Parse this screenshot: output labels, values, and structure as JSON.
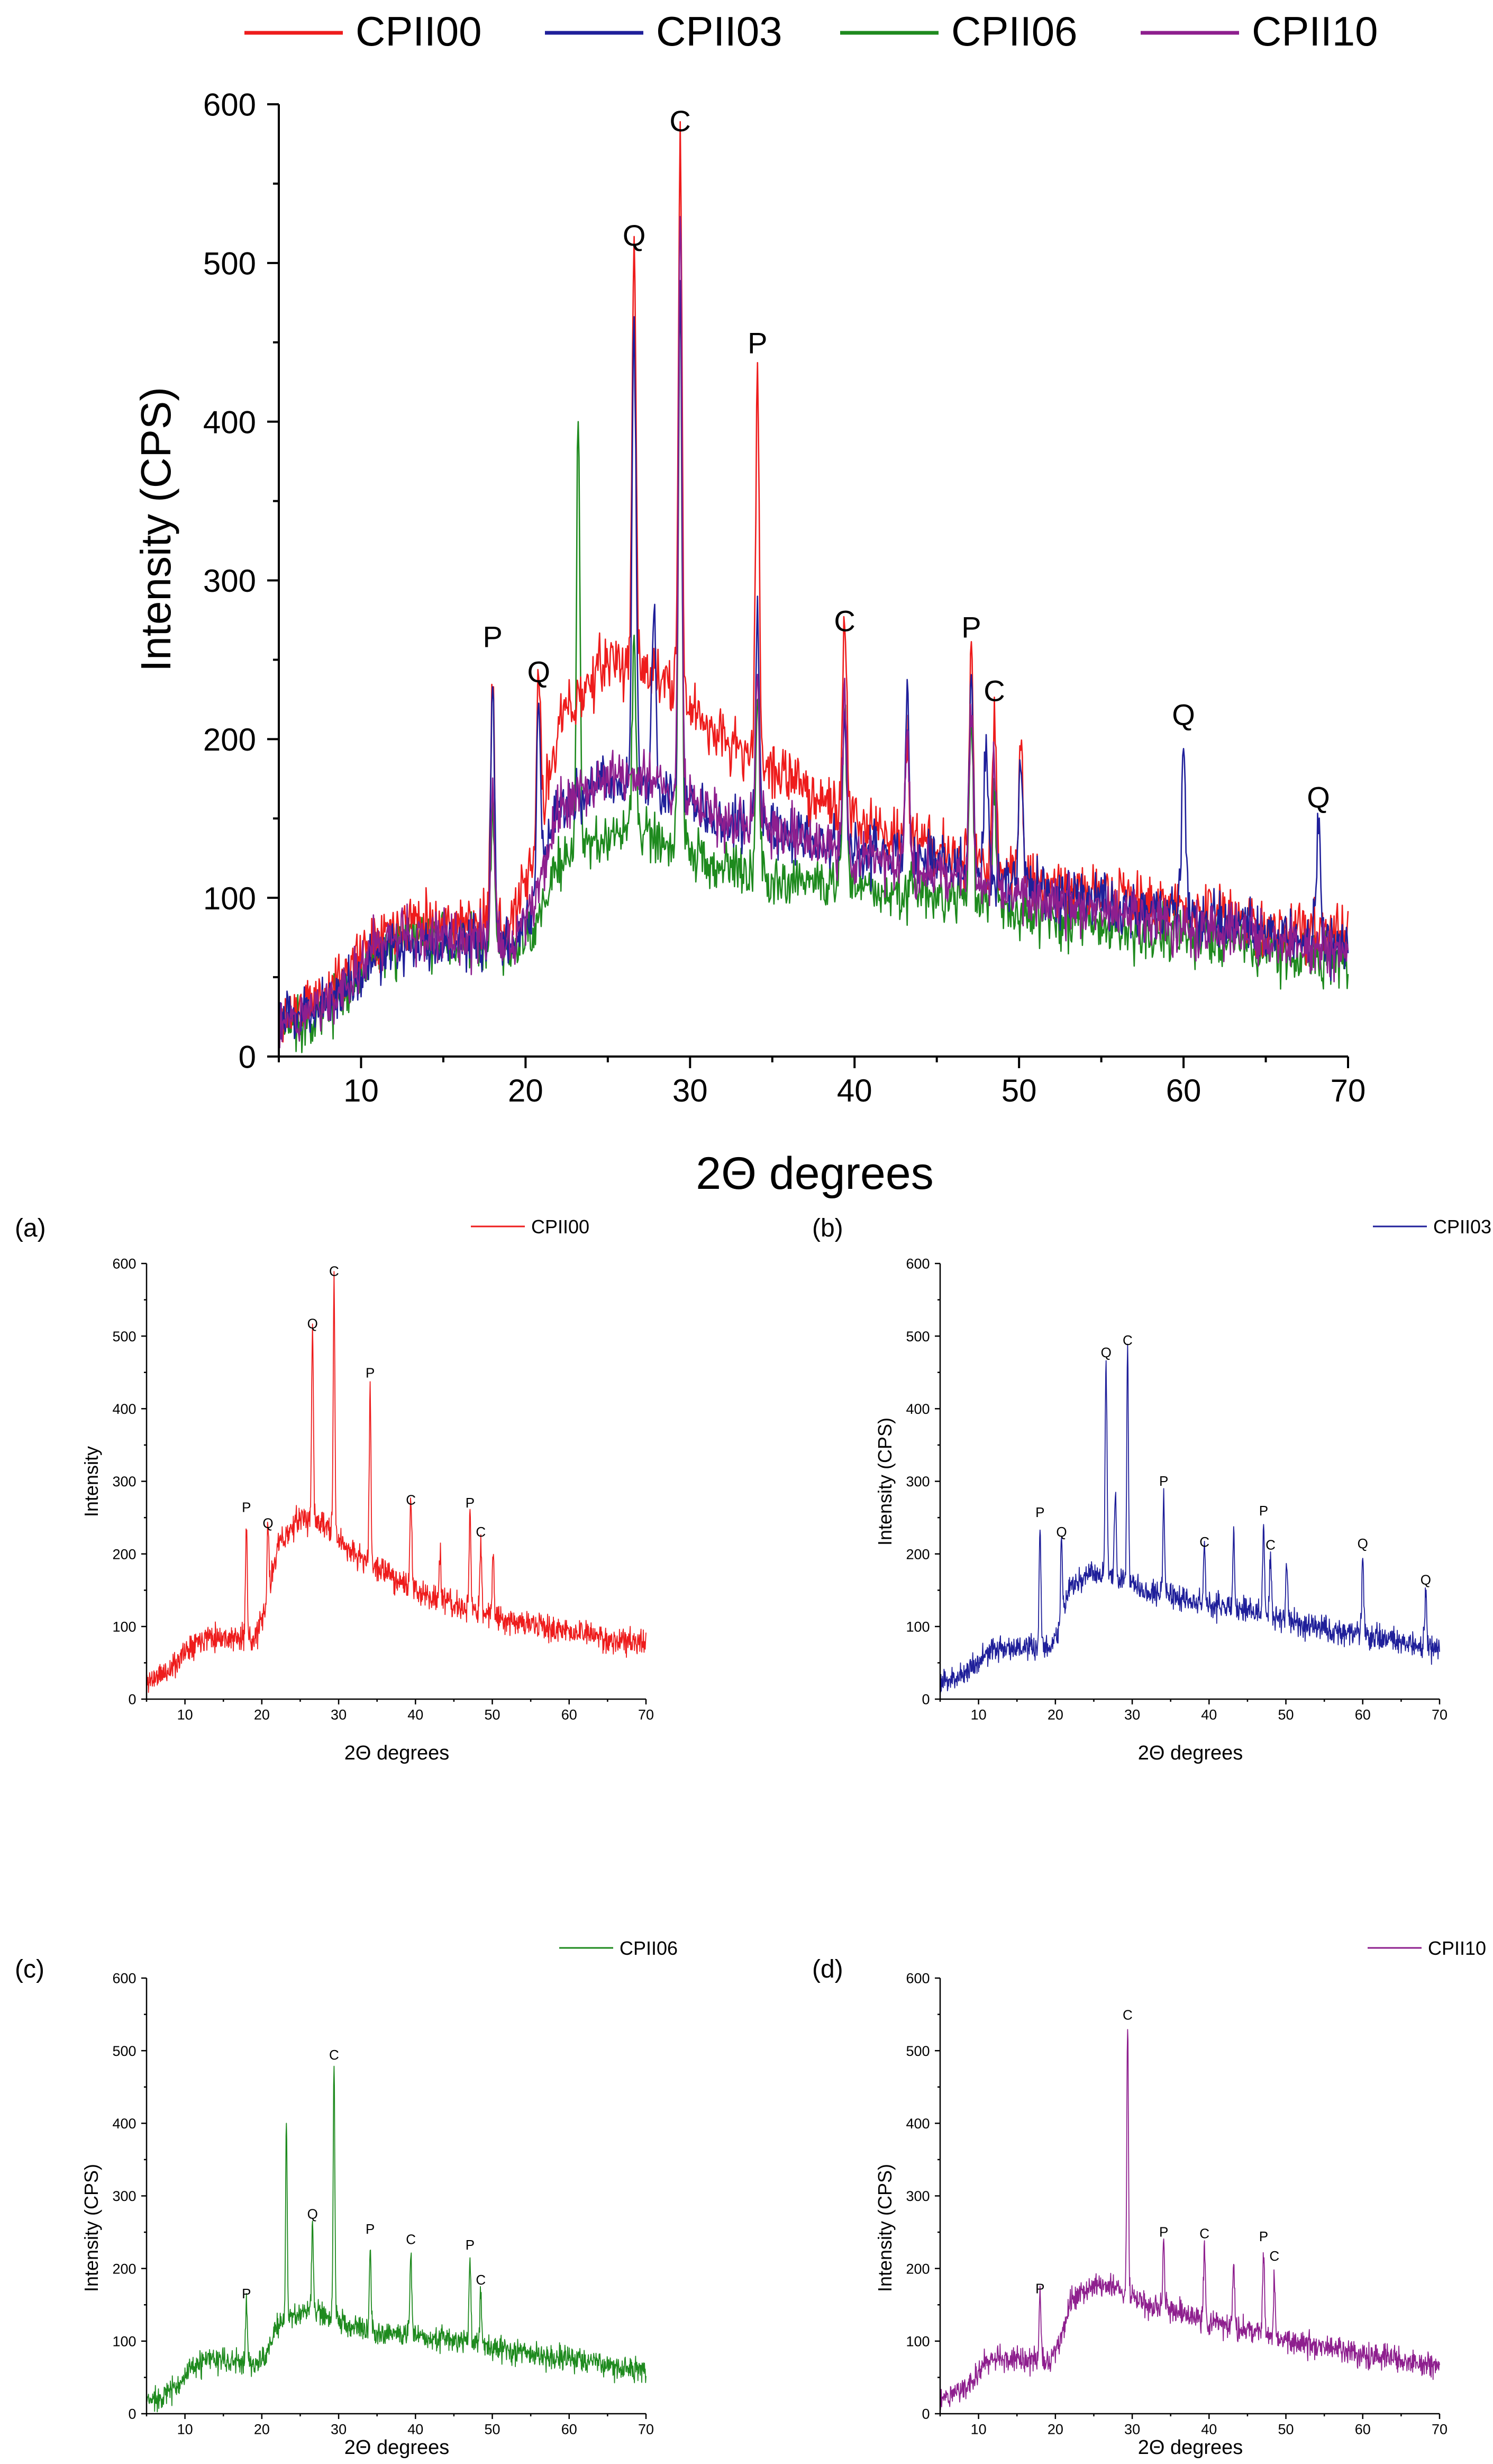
{
  "colors": {
    "CPII00": "#ee1c1c",
    "CPII03": "#1f1f9a",
    "CPII06": "#1e8a1e",
    "CPII10": "#8e1f8e",
    "axis": "#000000"
  },
  "legend_main": {
    "entries": [
      "CPII00",
      "CPII03",
      "CPII06",
      "CPII10"
    ]
  },
  "chart_data": [
    {
      "id": "main",
      "type": "line",
      "title": "",
      "xlabel": "2Θ degrees",
      "ylabel": "Intensity (CPS)",
      "xlim": [
        5,
        70
      ],
      "ylim": [
        0,
        600
      ],
      "xticks": [
        10,
        20,
        30,
        40,
        50,
        60,
        70
      ],
      "yticks": [
        0,
        100,
        200,
        300,
        400,
        500,
        600
      ],
      "legend_position": "top",
      "series_names": [
        "CPII00",
        "CPII03",
        "CPII06",
        "CPII10"
      ],
      "annotations": [
        {
          "label": "P",
          "x": 18.0,
          "y": 252
        },
        {
          "label": "Q",
          "x": 20.8,
          "y": 230
        },
        {
          "label": "Q",
          "x": 26.6,
          "y": 505
        },
        {
          "label": "C",
          "x": 29.4,
          "y": 577
        },
        {
          "label": "P",
          "x": 34.1,
          "y": 437
        },
        {
          "label": "C",
          "x": 39.4,
          "y": 262
        },
        {
          "label": "P",
          "x": 47.1,
          "y": 258
        },
        {
          "label": "C",
          "x": 48.5,
          "y": 218
        },
        {
          "label": "Q",
          "x": 60.0,
          "y": 203
        },
        {
          "label": "Q",
          "x": 68.2,
          "y": 151
        }
      ]
    },
    {
      "id": "a",
      "type": "line",
      "panel_label": "(a)",
      "series_name": "CPII00",
      "xlabel": "2Θ degrees",
      "ylabel": "Intensity",
      "xlim": [
        5,
        70
      ],
      "ylim": [
        0,
        600
      ],
      "xticks": [
        10,
        20,
        30,
        40,
        50,
        60,
        70
      ],
      "yticks": [
        0,
        100,
        200,
        300,
        400,
        500,
        600
      ],
      "legend_position": "top-right",
      "annotations": [
        {
          "label": "P",
          "x": 18.0,
          "y": 252
        },
        {
          "label": "Q",
          "x": 20.8,
          "y": 230
        },
        {
          "label": "Q",
          "x": 26.6,
          "y": 505
        },
        {
          "label": "C",
          "x": 29.4,
          "y": 577
        },
        {
          "label": "P",
          "x": 34.1,
          "y": 437
        },
        {
          "label": "C",
          "x": 39.4,
          "y": 262
        },
        {
          "label": "P",
          "x": 47.1,
          "y": 258
        },
        {
          "label": "C",
          "x": 48.5,
          "y": 218
        }
      ]
    },
    {
      "id": "b",
      "type": "line",
      "panel_label": "(b)",
      "series_name": "CPII03",
      "xlabel": "2Θ degrees",
      "ylabel": "Intensity (CPS)",
      "xlim": [
        5,
        70
      ],
      "ylim": [
        0,
        600
      ],
      "xticks": [
        10,
        20,
        30,
        40,
        50,
        60,
        70
      ],
      "yticks": [
        0,
        100,
        200,
        300,
        400,
        500,
        600
      ],
      "legend_position": "top-right",
      "annotations": [
        {
          "label": "P",
          "x": 18.0,
          "y": 245
        },
        {
          "label": "Q",
          "x": 20.8,
          "y": 218
        },
        {
          "label": "Q",
          "x": 26.6,
          "y": 465
        },
        {
          "label": "C",
          "x": 29.4,
          "y": 482
        },
        {
          "label": "P",
          "x": 34.1,
          "y": 288
        },
        {
          "label": "C",
          "x": 39.4,
          "y": 204
        },
        {
          "label": "P",
          "x": 47.1,
          "y": 247
        },
        {
          "label": "C",
          "x": 48.0,
          "y": 200
        },
        {
          "label": "Q",
          "x": 60.0,
          "y": 202
        },
        {
          "label": "Q",
          "x": 68.2,
          "y": 152
        }
      ]
    },
    {
      "id": "c",
      "type": "line",
      "panel_label": "(c)",
      "series_name": "CPII06",
      "xlabel": "2Θ degrees",
      "ylabel": "Intensity (CPS)",
      "xlim": [
        5,
        70
      ],
      "ylim": [
        0,
        600
      ],
      "xticks": [
        10,
        20,
        30,
        40,
        50,
        60,
        70
      ],
      "yticks": [
        0,
        100,
        200,
        300,
        400,
        500,
        600
      ],
      "legend_position": "top-right",
      "annotations": [
        {
          "label": "P",
          "x": 18.0,
          "y": 153
        },
        {
          "label": "Q",
          "x": 26.6,
          "y": 263
        },
        {
          "label": "C",
          "x": 29.4,
          "y": 482
        },
        {
          "label": "P",
          "x": 34.1,
          "y": 242
        },
        {
          "label": "C",
          "x": 39.4,
          "y": 228
        },
        {
          "label": "P",
          "x": 47.1,
          "y": 220
        },
        {
          "label": "C",
          "x": 48.5,
          "y": 172
        }
      ]
    },
    {
      "id": "d",
      "type": "line",
      "panel_label": "(d)",
      "series_name": "CPII10",
      "xlabel": "2Θ degrees",
      "ylabel": "Intensity (CPS)",
      "xlim": [
        5,
        70
      ],
      "ylim": [
        0,
        600
      ],
      "xticks": [
        10,
        20,
        30,
        40,
        50,
        60,
        70
      ],
      "yticks": [
        0,
        100,
        200,
        300,
        400,
        500,
        600
      ],
      "legend_position": "top-right",
      "annotations": [
        {
          "label": "P",
          "x": 18.0,
          "y": 160
        },
        {
          "label": "C",
          "x": 29.4,
          "y": 537
        },
        {
          "label": "P",
          "x": 34.1,
          "y": 238
        },
        {
          "label": "C",
          "x": 39.4,
          "y": 236
        },
        {
          "label": "P",
          "x": 47.1,
          "y": 232
        },
        {
          "label": "C",
          "x": 48.5,
          "y": 205
        }
      ]
    }
  ],
  "spectra": {
    "CPII00": {
      "noise": 14,
      "baseline": [
        [
          5,
          24
        ],
        [
          8,
          40
        ],
        [
          11,
          78
        ],
        [
          13,
          88
        ],
        [
          16,
          84
        ],
        [
          19,
          80
        ],
        [
          20.5,
          120
        ],
        [
          22,
          210
        ],
        [
          25,
          250
        ],
        [
          28,
          240
        ],
        [
          32,
          200
        ],
        [
          36,
          175
        ],
        [
          40,
          150
        ],
        [
          46,
          125
        ],
        [
          50,
          115
        ],
        [
          56,
          100
        ],
        [
          62,
          90
        ],
        [
          66,
          80
        ],
        [
          70,
          76
        ]
      ],
      "peaks": [
        [
          18.0,
          165,
          0.12
        ],
        [
          20.8,
          105,
          0.12
        ],
        [
          26.6,
          265,
          0.12
        ],
        [
          29.4,
          345,
          0.11
        ],
        [
          34.1,
          245,
          0.11
        ],
        [
          39.4,
          120,
          0.12
        ],
        [
          43.2,
          65,
          0.12
        ],
        [
          47.1,
          132,
          0.12
        ],
        [
          48.5,
          95,
          0.12
        ],
        [
          50.1,
          90,
          0.12
        ]
      ]
    },
    "CPII03": {
      "noise": 13,
      "baseline": [
        [
          5,
          20
        ],
        [
          8,
          35
        ],
        [
          11,
          62
        ],
        [
          13,
          72
        ],
        [
          16,
          70
        ],
        [
          19,
          68
        ],
        [
          20.5,
          95
        ],
        [
          22,
          155
        ],
        [
          25,
          175
        ],
        [
          28,
          170
        ],
        [
          32,
          150
        ],
        [
          36,
          140
        ],
        [
          40,
          130
        ],
        [
          46,
          120
        ],
        [
          50,
          108
        ],
        [
          56,
          95
        ],
        [
          62,
          85
        ],
        [
          66,
          75
        ],
        [
          70,
          68
        ]
      ],
      "peaks": [
        [
          18.0,
          168,
          0.12
        ],
        [
          20.8,
          120,
          0.12
        ],
        [
          26.6,
          295,
          0.12
        ],
        [
          27.8,
          120,
          0.12
        ],
        [
          29.4,
          315,
          0.11
        ],
        [
          34.1,
          140,
          0.11
        ],
        [
          39.4,
          80,
          0.12
        ],
        [
          43.2,
          110,
          0.12
        ],
        [
          47.1,
          128,
          0.12
        ],
        [
          48.0,
          85,
          0.12
        ],
        [
          50.1,
          80,
          0.12
        ],
        [
          60.0,
          112,
          0.12
        ],
        [
          68.2,
          82,
          0.12
        ]
      ]
    },
    "CPII06": {
      "noise": 13,
      "baseline": [
        [
          5,
          16
        ],
        [
          8,
          30
        ],
        [
          11,
          62
        ],
        [
          13,
          75
        ],
        [
          16,
          72
        ],
        [
          19,
          68
        ],
        [
          20.5,
          80
        ],
        [
          22,
          120
        ],
        [
          25,
          140
        ],
        [
          28,
          138
        ],
        [
          32,
          120
        ],
        [
          36,
          112
        ],
        [
          40,
          108
        ],
        [
          46,
          100
        ],
        [
          50,
          92
        ],
        [
          56,
          80
        ],
        [
          62,
          72
        ],
        [
          66,
          65
        ],
        [
          70,
          60
        ]
      ],
      "peaks": [
        [
          18.0,
          85,
          0.12
        ],
        [
          23.2,
          285,
          0.1
        ],
        [
          26.6,
          125,
          0.12
        ],
        [
          29.4,
          340,
          0.11
        ],
        [
          34.1,
          120,
          0.11
        ],
        [
          39.4,
          110,
          0.12
        ],
        [
          47.1,
          115,
          0.12
        ],
        [
          48.5,
          70,
          0.12
        ]
      ]
    },
    "CPII10": {
      "noise": 13,
      "baseline": [
        [
          5,
          20
        ],
        [
          8,
          35
        ],
        [
          11,
          70
        ],
        [
          13,
          78
        ],
        [
          16,
          74
        ],
        [
          19,
          70
        ],
        [
          20.5,
          95
        ],
        [
          22,
          155
        ],
        [
          25,
          178
        ],
        [
          28,
          172
        ],
        [
          32,
          150
        ],
        [
          36,
          140
        ],
        [
          40,
          125
        ],
        [
          46,
          115
        ],
        [
          50,
          100
        ],
        [
          56,
          90
        ],
        [
          62,
          78
        ],
        [
          66,
          72
        ],
        [
          70,
          66
        ]
      ],
      "peaks": [
        [
          18.0,
          95,
          0.12
        ],
        [
          29.4,
          370,
          0.11
        ],
        [
          34.1,
          90,
          0.11
        ],
        [
          39.4,
          105,
          0.12
        ],
        [
          43.2,
          95,
          0.12
        ],
        [
          47.1,
          110,
          0.12
        ],
        [
          48.5,
          80,
          0.12
        ]
      ]
    }
  }
}
